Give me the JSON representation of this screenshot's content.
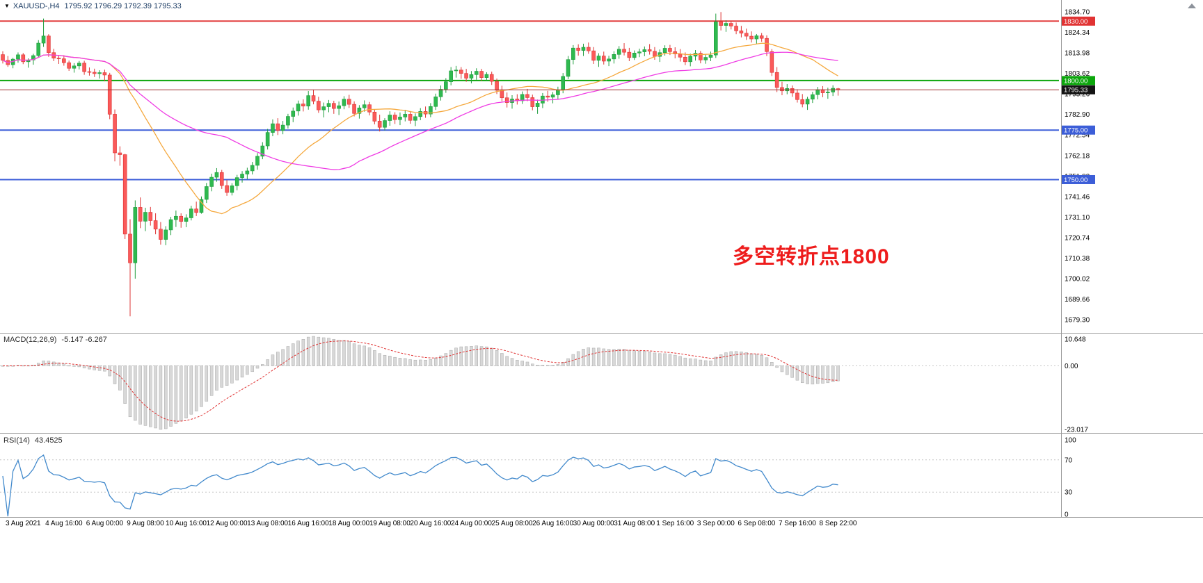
{
  "header": {
    "dropdown_icon": "▼",
    "symbol_period": "XAUUSD-,H4",
    "ohlc_text": "1795.92 1796.29 1792.39 1795.33"
  },
  "annotation": {
    "text": "多空转折点1800",
    "color": "#ee1c1c"
  },
  "price_axis": {
    "labels": [
      "1834.70",
      "1824.34",
      "1813.98",
      "1803.62",
      "1793.26",
      "1782.90",
      "1772.54",
      "1762.18",
      "1751.82",
      "1741.46",
      "1731.10",
      "1720.74",
      "1710.38",
      "1700.02",
      "1689.66",
      "1679.30"
    ]
  },
  "x_axis": {
    "labels": [
      "3 Aug 2021",
      "4 Aug 16:00",
      "6 Aug 00:00",
      "9 Aug 08:00",
      "10 Aug 16:00",
      "12 Aug 00:00",
      "13 Aug 08:00",
      "16 Aug 16:00",
      "18 Aug 00:00",
      "19 Aug 08:00",
      "20 Aug 16:00",
      "24 Aug 00:00",
      "25 Aug 08:00",
      "26 Aug 16:00",
      "30 Aug 00:00",
      "31 Aug 08:00",
      "1 Sep 16:00",
      "3 Sep 00:00",
      "6 Sep 08:00",
      "7 Sep 16:00",
      "8 Sep 22:00"
    ]
  },
  "macd_pane": {
    "title": "MACD(12,26,9)",
    "values_text": "-5.147 -6.267",
    "axis_labels": [
      "10.648",
      "0.00",
      "-23.017"
    ]
  },
  "rsi_pane": {
    "title": "RSI(14)",
    "value_text": "43.4525",
    "axis_labels": [
      "100",
      "70",
      "30",
      "0"
    ]
  },
  "chart_data": {
    "type": "candlestick",
    "symbol": "XAUUSD-",
    "timeframe": "H4",
    "y_axis": {
      "min": 1679.3,
      "max": 1834.7
    },
    "hlines": [
      {
        "price": 1830.0,
        "label": "1830.00",
        "color": "#e13333"
      },
      {
        "price": 1800.0,
        "label": "1800.00",
        "color": "#0ca60c"
      },
      {
        "price": 1775.0,
        "label": "1775.00",
        "color": "#3c5ed8"
      },
      {
        "price": 1750.0,
        "label": "1750.00",
        "color": "#3c5ed8"
      }
    ],
    "current_price": {
      "value": 1795.33,
      "label": "1795.33",
      "line_color": "#a03030",
      "badge_bg": "#141414"
    },
    "overlays": [
      {
        "name": "ma-fast",
        "type": "sma",
        "period": 20,
        "color": "#f5a83d"
      },
      {
        "name": "ma-slow",
        "type": "sma",
        "period": 45,
        "color": "#ef3ce4"
      }
    ],
    "macd": {
      "params": [
        12,
        26,
        9
      ],
      "scale_max": 10.648,
      "scale_min": -23.017,
      "main": -5.147,
      "signal_value": -6.267
    },
    "rsi": {
      "period": 14,
      "levels": [
        70,
        30
      ],
      "range": [
        0,
        100
      ],
      "last_value": 43.4525
    },
    "colors": {
      "up_fill": "#2fb94f",
      "up_stroke": "#1e9c3c",
      "down_fill": "#fa5a5a",
      "down_stroke": "#de3434",
      "histogram": "#d8d8d8",
      "histogram_stroke": "#a8a8a8",
      "signal": "#e03131",
      "rsi_line": "#4189cc"
    },
    "candles": [
      [
        1813.1,
        1814.8,
        1808.6,
        1810.2
      ],
      [
        1810.2,
        1812.4,
        1806.9,
        1808.0
      ],
      [
        1808.0,
        1811.5,
        1806.2,
        1810.8
      ],
      [
        1810.8,
        1814.2,
        1809.0,
        1813.0
      ],
      [
        1813.0,
        1813.9,
        1808.3,
        1809.5
      ],
      [
        1809.5,
        1811.2,
        1806.5,
        1810.4
      ],
      [
        1810.4,
        1813.5,
        1808.0,
        1812.6
      ],
      [
        1812.6,
        1820.4,
        1811.8,
        1818.9
      ],
      [
        1818.9,
        1831.3,
        1817.0,
        1822.5
      ],
      [
        1822.5,
        1823.4,
        1812.0,
        1814.1
      ],
      [
        1814.1,
        1816.0,
        1809.8,
        1811.3
      ],
      [
        1811.3,
        1812.9,
        1808.4,
        1811.0
      ],
      [
        1811.0,
        1812.8,
        1807.5,
        1809.0
      ],
      [
        1809.0,
        1810.1,
        1804.9,
        1806.2
      ],
      [
        1806.2,
        1808.8,
        1804.0,
        1807.4
      ],
      [
        1807.4,
        1809.9,
        1805.6,
        1808.8
      ],
      [
        1808.8,
        1810.0,
        1802.9,
        1804.5
      ],
      [
        1804.5,
        1806.6,
        1802.5,
        1804.2
      ],
      [
        1804.2,
        1806.0,
        1801.8,
        1803.5
      ],
      [
        1803.5,
        1805.2,
        1801.0,
        1804.0
      ],
      [
        1804.0,
        1805.5,
        1799.6,
        1802.8
      ],
      [
        1802.8,
        1803.9,
        1780.5,
        1783.0
      ],
      [
        1783.0,
        1785.4,
        1759.2,
        1763.5
      ],
      [
        1763.5,
        1766.8,
        1757.0,
        1762.6
      ],
      [
        1762.6,
        1763.0,
        1720.0,
        1722.5
      ],
      [
        1722.5,
        1730.0,
        1681.0,
        1708.0
      ],
      [
        1708.0,
        1739.5,
        1700.0,
        1736.0
      ],
      [
        1736.0,
        1741.0,
        1725.5,
        1729.0
      ],
      [
        1729.0,
        1735.8,
        1724.0,
        1733.5
      ],
      [
        1733.5,
        1736.2,
        1726.8,
        1729.3
      ],
      [
        1729.3,
        1733.0,
        1722.4,
        1725.0
      ],
      [
        1725.0,
        1728.6,
        1717.2,
        1719.8
      ],
      [
        1719.8,
        1726.5,
        1716.9,
        1724.6
      ],
      [
        1724.6,
        1731.2,
        1722.0,
        1729.8
      ],
      [
        1729.8,
        1734.4,
        1726.1,
        1731.5
      ],
      [
        1731.5,
        1733.0,
        1725.7,
        1728.9
      ],
      [
        1728.9,
        1732.5,
        1726.0,
        1730.7
      ],
      [
        1730.7,
        1736.8,
        1729.4,
        1735.2
      ],
      [
        1735.2,
        1738.9,
        1731.6,
        1733.4
      ],
      [
        1733.4,
        1741.5,
        1732.8,
        1740.0
      ],
      [
        1740.0,
        1748.3,
        1738.2,
        1746.5
      ],
      [
        1746.5,
        1753.0,
        1744.1,
        1751.2
      ],
      [
        1751.2,
        1755.8,
        1748.9,
        1753.6
      ],
      [
        1753.6,
        1754.9,
        1745.3,
        1747.0
      ],
      [
        1747.0,
        1749.8,
        1741.8,
        1743.5
      ],
      [
        1743.5,
        1748.2,
        1742.0,
        1746.9
      ],
      [
        1746.9,
        1752.4,
        1744.6,
        1751.0
      ],
      [
        1751.0,
        1754.3,
        1748.5,
        1752.8
      ],
      [
        1752.8,
        1756.0,
        1750.2,
        1754.4
      ],
      [
        1754.4,
        1758.9,
        1752.6,
        1757.2
      ],
      [
        1757.2,
        1763.4,
        1755.0,
        1761.8
      ],
      [
        1761.8,
        1768.9,
        1760.3,
        1767.0
      ],
      [
        1767.0,
        1775.6,
        1765.2,
        1773.8
      ],
      [
        1773.8,
        1780.4,
        1771.9,
        1778.2
      ],
      [
        1778.2,
        1781.0,
        1772.5,
        1774.8
      ],
      [
        1774.8,
        1779.6,
        1772.9,
        1777.5
      ],
      [
        1777.5,
        1783.2,
        1775.8,
        1781.9
      ],
      [
        1781.9,
        1786.4,
        1779.0,
        1784.6
      ],
      [
        1784.6,
        1789.9,
        1782.3,
        1788.2
      ],
      [
        1788.2,
        1790.5,
        1784.4,
        1787.1
      ],
      [
        1787.1,
        1794.7,
        1785.3,
        1792.4
      ],
      [
        1792.4,
        1795.4,
        1788.0,
        1789.6
      ],
      [
        1789.6,
        1791.8,
        1783.7,
        1785.2
      ],
      [
        1785.2,
        1788.9,
        1781.4,
        1786.8
      ],
      [
        1786.8,
        1790.2,
        1784.0,
        1788.5
      ],
      [
        1788.5,
        1789.8,
        1783.2,
        1785.9
      ],
      [
        1785.9,
        1789.4,
        1782.6,
        1787.3
      ],
      [
        1787.3,
        1792.1,
        1785.5,
        1790.6
      ],
      [
        1790.6,
        1792.8,
        1786.2,
        1788.0
      ],
      [
        1788.0,
        1789.5,
        1781.9,
        1783.4
      ],
      [
        1783.4,
        1787.6,
        1780.8,
        1786.2
      ],
      [
        1786.2,
        1790.0,
        1784.3,
        1787.8
      ],
      [
        1787.8,
        1789.2,
        1782.4,
        1784.1
      ],
      [
        1784.1,
        1785.6,
        1777.9,
        1779.5
      ],
      [
        1779.5,
        1782.8,
        1774.3,
        1776.4
      ],
      [
        1776.4,
        1781.0,
        1774.8,
        1779.8
      ],
      [
        1779.8,
        1784.5,
        1777.2,
        1782.6
      ],
      [
        1782.6,
        1784.0,
        1778.1,
        1780.3
      ],
      [
        1780.3,
        1783.9,
        1777.5,
        1781.6
      ],
      [
        1781.6,
        1785.2,
        1779.4,
        1783.0
      ],
      [
        1783.0,
        1784.6,
        1778.2,
        1779.9
      ],
      [
        1779.9,
        1783.4,
        1777.0,
        1781.8
      ],
      [
        1781.8,
        1786.1,
        1780.0,
        1784.4
      ],
      [
        1784.4,
        1786.9,
        1781.2,
        1783.1
      ],
      [
        1783.1,
        1788.6,
        1781.5,
        1786.9
      ],
      [
        1786.9,
        1793.4,
        1785.2,
        1791.8
      ],
      [
        1791.8,
        1797.5,
        1789.9,
        1795.6
      ],
      [
        1795.6,
        1801.2,
        1793.8,
        1799.4
      ],
      [
        1799.4,
        1806.8,
        1797.6,
        1804.9
      ],
      [
        1804.9,
        1807.4,
        1801.5,
        1805.3
      ],
      [
        1805.3,
        1806.8,
        1800.9,
        1803.6
      ],
      [
        1803.6,
        1805.9,
        1799.4,
        1801.2
      ],
      [
        1801.2,
        1804.8,
        1798.6,
        1803.0
      ],
      [
        1803.0,
        1806.2,
        1800.4,
        1804.7
      ],
      [
        1804.7,
        1805.9,
        1799.8,
        1801.5
      ],
      [
        1801.5,
        1804.2,
        1800.0,
        1803.1
      ],
      [
        1803.1,
        1804.5,
        1797.8,
        1799.6
      ],
      [
        1799.6,
        1801.0,
        1793.2,
        1795.1
      ],
      [
        1795.1,
        1797.4,
        1789.5,
        1791.3
      ],
      [
        1791.3,
        1794.0,
        1786.4,
        1788.9
      ],
      [
        1788.9,
        1792.6,
        1785.8,
        1790.7
      ],
      [
        1790.7,
        1793.1,
        1787.9,
        1789.8
      ],
      [
        1789.8,
        1794.5,
        1788.2,
        1793.0
      ],
      [
        1793.0,
        1795.8,
        1789.6,
        1791.4
      ],
      [
        1791.4,
        1792.9,
        1785.0,
        1786.8
      ],
      [
        1786.8,
        1790.4,
        1783.2,
        1788.6
      ],
      [
        1788.6,
        1793.7,
        1786.1,
        1792.2
      ],
      [
        1792.2,
        1794.8,
        1789.3,
        1791.6
      ],
      [
        1791.6,
        1794.2,
        1788.5,
        1792.8
      ],
      [
        1792.8,
        1796.9,
        1790.4,
        1795.3
      ],
      [
        1795.3,
        1803.8,
        1793.6,
        1802.1
      ],
      [
        1802.1,
        1812.4,
        1800.7,
        1810.6
      ],
      [
        1810.6,
        1817.9,
        1808.2,
        1816.4
      ],
      [
        1816.4,
        1818.3,
        1812.6,
        1815.2
      ],
      [
        1815.2,
        1818.6,
        1812.4,
        1816.8
      ],
      [
        1816.8,
        1819.2,
        1813.5,
        1815.0
      ],
      [
        1815.0,
        1816.9,
        1808.4,
        1810.2
      ],
      [
        1810.2,
        1813.8,
        1806.9,
        1812.4
      ],
      [
        1812.4,
        1814.6,
        1808.1,
        1809.8
      ],
      [
        1809.8,
        1812.5,
        1807.3,
        1810.9
      ],
      [
        1810.9,
        1814.8,
        1808.6,
        1813.2
      ],
      [
        1813.2,
        1817.4,
        1811.0,
        1815.8
      ],
      [
        1815.8,
        1818.9,
        1812.7,
        1814.3
      ],
      [
        1814.3,
        1816.5,
        1809.8,
        1811.6
      ],
      [
        1811.6,
        1815.2,
        1810.4,
        1813.9
      ],
      [
        1813.9,
        1816.1,
        1811.8,
        1814.5
      ],
      [
        1814.5,
        1817.2,
        1812.3,
        1815.6
      ],
      [
        1815.6,
        1818.4,
        1813.1,
        1814.8
      ],
      [
        1814.8,
        1816.9,
        1810.5,
        1812.2
      ],
      [
        1812.2,
        1815.7,
        1809.4,
        1814.1
      ],
      [
        1814.1,
        1817.8,
        1812.6,
        1816.3
      ],
      [
        1816.3,
        1818.0,
        1812.9,
        1814.6
      ],
      [
        1814.6,
        1816.8,
        1811.2,
        1813.4
      ],
      [
        1813.4,
        1815.9,
        1809.6,
        1811.8
      ],
      [
        1811.8,
        1814.2,
        1807.8,
        1809.5
      ],
      [
        1809.5,
        1813.6,
        1807.2,
        1812.3
      ],
      [
        1812.3,
        1815.4,
        1810.1,
        1813.8
      ],
      [
        1813.8,
        1814.9,
        1808.7,
        1810.4
      ],
      [
        1810.4,
        1813.2,
        1808.5,
        1811.7
      ],
      [
        1811.7,
        1814.6,
        1809.8,
        1812.9
      ],
      [
        1812.9,
        1833.8,
        1811.4,
        1829.6
      ],
      [
        1829.6,
        1834.6,
        1825.3,
        1827.8
      ],
      [
        1827.8,
        1830.4,
        1824.6,
        1828.9
      ],
      [
        1828.9,
        1830.1,
        1825.8,
        1827.5
      ],
      [
        1827.5,
        1829.3,
        1823.4,
        1825.1
      ],
      [
        1825.1,
        1827.6,
        1821.8,
        1823.9
      ],
      [
        1823.9,
        1826.2,
        1820.5,
        1822.4
      ],
      [
        1822.4,
        1824.8,
        1819.2,
        1821.0
      ],
      [
        1821.0,
        1823.5,
        1818.4,
        1822.6
      ],
      [
        1822.6,
        1824.0,
        1819.6,
        1821.3
      ],
      [
        1821.3,
        1822.8,
        1812.4,
        1814.6
      ],
      [
        1814.6,
        1815.9,
        1802.3,
        1804.1
      ],
      [
        1804.1,
        1806.8,
        1794.2,
        1796.5
      ],
      [
        1796.5,
        1799.4,
        1792.6,
        1794.8
      ],
      [
        1794.8,
        1798.2,
        1793.1,
        1796.0
      ],
      [
        1796.0,
        1797.5,
        1791.8,
        1793.7
      ],
      [
        1793.7,
        1795.6,
        1788.9,
        1790.4
      ],
      [
        1790.4,
        1793.2,
        1786.5,
        1788.1
      ],
      [
        1788.1,
        1791.8,
        1785.2,
        1790.6
      ],
      [
        1790.6,
        1794.3,
        1788.7,
        1792.9
      ],
      [
        1792.9,
        1796.8,
        1790.5,
        1795.4
      ],
      [
        1795.4,
        1797.2,
        1791.6,
        1793.8
      ],
      [
        1793.8,
        1796.4,
        1790.8,
        1794.2
      ],
      [
        1794.2,
        1797.6,
        1792.2,
        1796.1
      ],
      [
        1795.92,
        1796.29,
        1792.39,
        1795.33
      ]
    ]
  }
}
